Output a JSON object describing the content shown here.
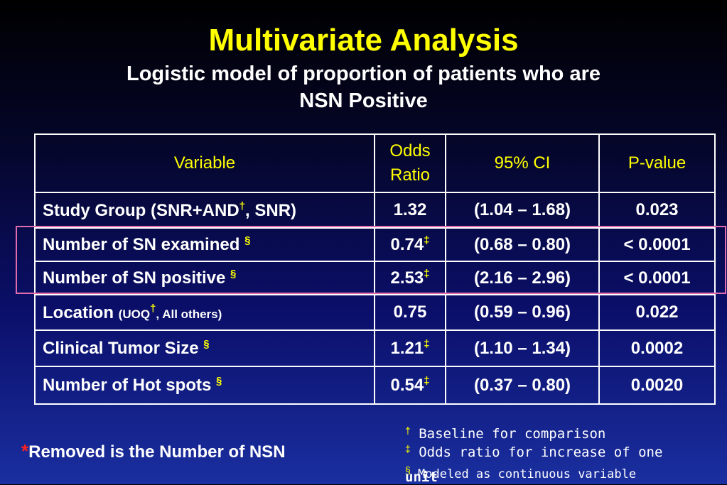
{
  "slide": {
    "title": "Multivariate Analysis",
    "subtitle_line1": "Logistic model of proportion of patients who are",
    "subtitle_line2": "NSN Positive"
  },
  "table": {
    "headers": {
      "variable": "Variable",
      "odds_line1": "Odds",
      "odds_line2": "Ratio",
      "ci": "95% CI",
      "pvalue": "P-value"
    },
    "rows": [
      {
        "variable_a": "Study Group (SNR+AND",
        "mark": "†",
        "variable_b": ", SNR)",
        "odds": "1.32",
        "odds_mark": "",
        "ci": "(1.04 – 1.68)",
        "p": "0.023"
      },
      {
        "variable": "Number of SN examined ",
        "mark": "§",
        "odds": "0.74",
        "odds_mark": "‡",
        "ci": "(0.68 – 0.80)",
        "p": "< 0.0001"
      },
      {
        "variable": "Number of SN positive ",
        "mark": "§",
        "odds": "2.53",
        "odds_mark": "‡",
        "ci": "(2.16 – 2.96)",
        "p": "< 0.0001"
      },
      {
        "variable": "Location ",
        "small_a": "(UOQ",
        "mark": "†",
        "small_b": ", All others)",
        "odds": "0.75",
        "odds_mark": "",
        "ci": "(0.59 – 0.96)",
        "p": "0.022"
      },
      {
        "variable": "Clinical Tumor Size ",
        "mark": "§",
        "odds": "1.21",
        "odds_mark": "‡",
        "ci": "(1.10 – 1.34)",
        "p": "0.0002"
      },
      {
        "variable": "Number of Hot spots ",
        "mark": "§",
        "odds": "0.54",
        "odds_mark": "‡",
        "ci": "(0.37 – 0.80)",
        "p": "0.0020"
      }
    ]
  },
  "note": {
    "star": "*",
    "text": "Removed is the Number of NSN"
  },
  "footnotes": [
    {
      "symbol": "†",
      "text": " Baseline for comparison"
    },
    {
      "symbol": "‡",
      "text": " Odds ratio for increase of one"
    },
    {
      "symbol": "§",
      "text": " Modeled as continuous variable"
    },
    {
      "text": "unit"
    }
  ]
}
